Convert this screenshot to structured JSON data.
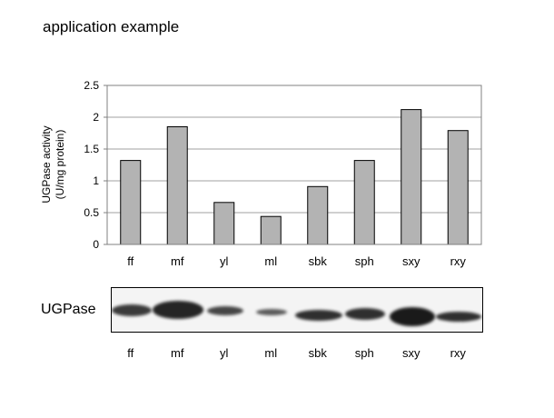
{
  "page": {
    "title": "application example"
  },
  "chart_data": {
    "type": "bar",
    "categories": [
      "ff",
      "mf",
      "yl",
      "ml",
      "sbk",
      "sph",
      "sxy",
      "rxy"
    ],
    "values": [
      1.32,
      1.85,
      0.66,
      0.44,
      0.91,
      1.32,
      2.12,
      1.79
    ],
    "ylabel": [
      "UGPase activity",
      "(U/mg protein)"
    ],
    "yticks": [
      "0",
      "0.5",
      "1",
      "1.5",
      "2",
      "2.5"
    ],
    "ylim": [
      0,
      2.5
    ],
    "grid": true,
    "bar_color": "#b3b3b3"
  },
  "blot": {
    "label": "UGPase",
    "lanes": [
      "ff",
      "mf",
      "yl",
      "ml",
      "sbk",
      "sph",
      "sxy",
      "rxy"
    ]
  }
}
